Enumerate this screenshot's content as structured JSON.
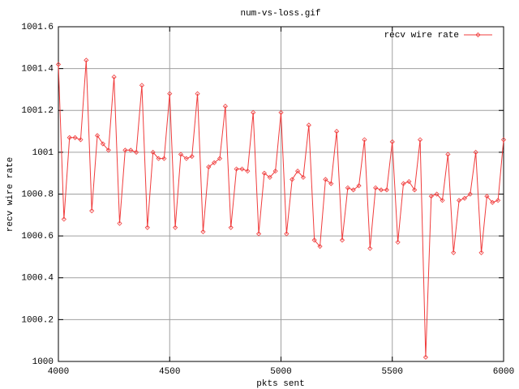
{
  "chart_data": {
    "type": "line",
    "title": "num-vs-loss.gif",
    "xlabel": "pkts sent",
    "ylabel": "recv wire rate",
    "x": [
      4000,
      4025,
      4050,
      4075,
      4100,
      4125,
      4150,
      4175,
      4200,
      4225,
      4250,
      4275,
      4300,
      4325,
      4350,
      4375,
      4400,
      4425,
      4450,
      4475,
      4500,
      4525,
      4550,
      4575,
      4600,
      4625,
      4650,
      4675,
      4700,
      4725,
      4750,
      4775,
      4800,
      4825,
      4850,
      4875,
      4900,
      4925,
      4950,
      4975,
      5000,
      5025,
      5050,
      5075,
      5100,
      5125,
      5150,
      5175,
      5200,
      5225,
      5250,
      5275,
      5300,
      5325,
      5350,
      5375,
      5400,
      5425,
      5450,
      5475,
      5500,
      5525,
      5550,
      5575,
      5600,
      5625,
      5650,
      5675,
      5700,
      5725,
      5750,
      5775,
      5800,
      5825,
      5850,
      5875,
      5900,
      5925,
      5950,
      5975,
      6000
    ],
    "series": [
      {
        "name": "recv wire rate",
        "color": "#f03c3c",
        "values": [
          1001.42,
          1000.68,
          1001.07,
          1001.07,
          1001.06,
          1001.44,
          1000.72,
          1001.08,
          1001.04,
          1001.01,
          1001.36,
          1000.66,
          1001.01,
          1001.01,
          1001.0,
          1001.32,
          1000.64,
          1001.0,
          1000.97,
          1000.97,
          1001.28,
          1000.64,
          1000.99,
          1000.97,
          1000.98,
          1001.28,
          1000.62,
          1000.93,
          1000.95,
          1000.97,
          1001.22,
          1000.64,
          1000.92,
          1000.92,
          1000.91,
          1001.19,
          1000.61,
          1000.9,
          1000.88,
          1000.91,
          1001.19,
          1000.61,
          1000.87,
          1000.91,
          1000.88,
          1001.13,
          1000.58,
          1000.55,
          1000.87,
          1000.85,
          1001.1,
          1000.58,
          1000.83,
          1000.82,
          1000.84,
          1001.06,
          1000.54,
          1000.83,
          1000.82,
          1000.82,
          1001.05,
          1000.57,
          1000.85,
          1000.86,
          1000.82,
          1001.06,
          1000.02,
          1000.79,
          1000.8,
          1000.77,
          1000.99,
          1000.52,
          1000.77,
          1000.78,
          1000.8,
          1001.0,
          1000.52,
          1000.79,
          1000.76,
          1000.77,
          1001.06
        ]
      }
    ],
    "xlim": [
      4000,
      6000
    ],
    "xticks": [
      4000,
      4500,
      5000,
      5500,
      6000
    ],
    "ylim": [
      1000,
      1001.6
    ],
    "yticks": [
      1000,
      1000.2,
      1000.4,
      1000.6,
      1000.8,
      1001,
      1001.2,
      1001.4,
      1001.6
    ],
    "grid": true,
    "legend": "top-right"
  }
}
